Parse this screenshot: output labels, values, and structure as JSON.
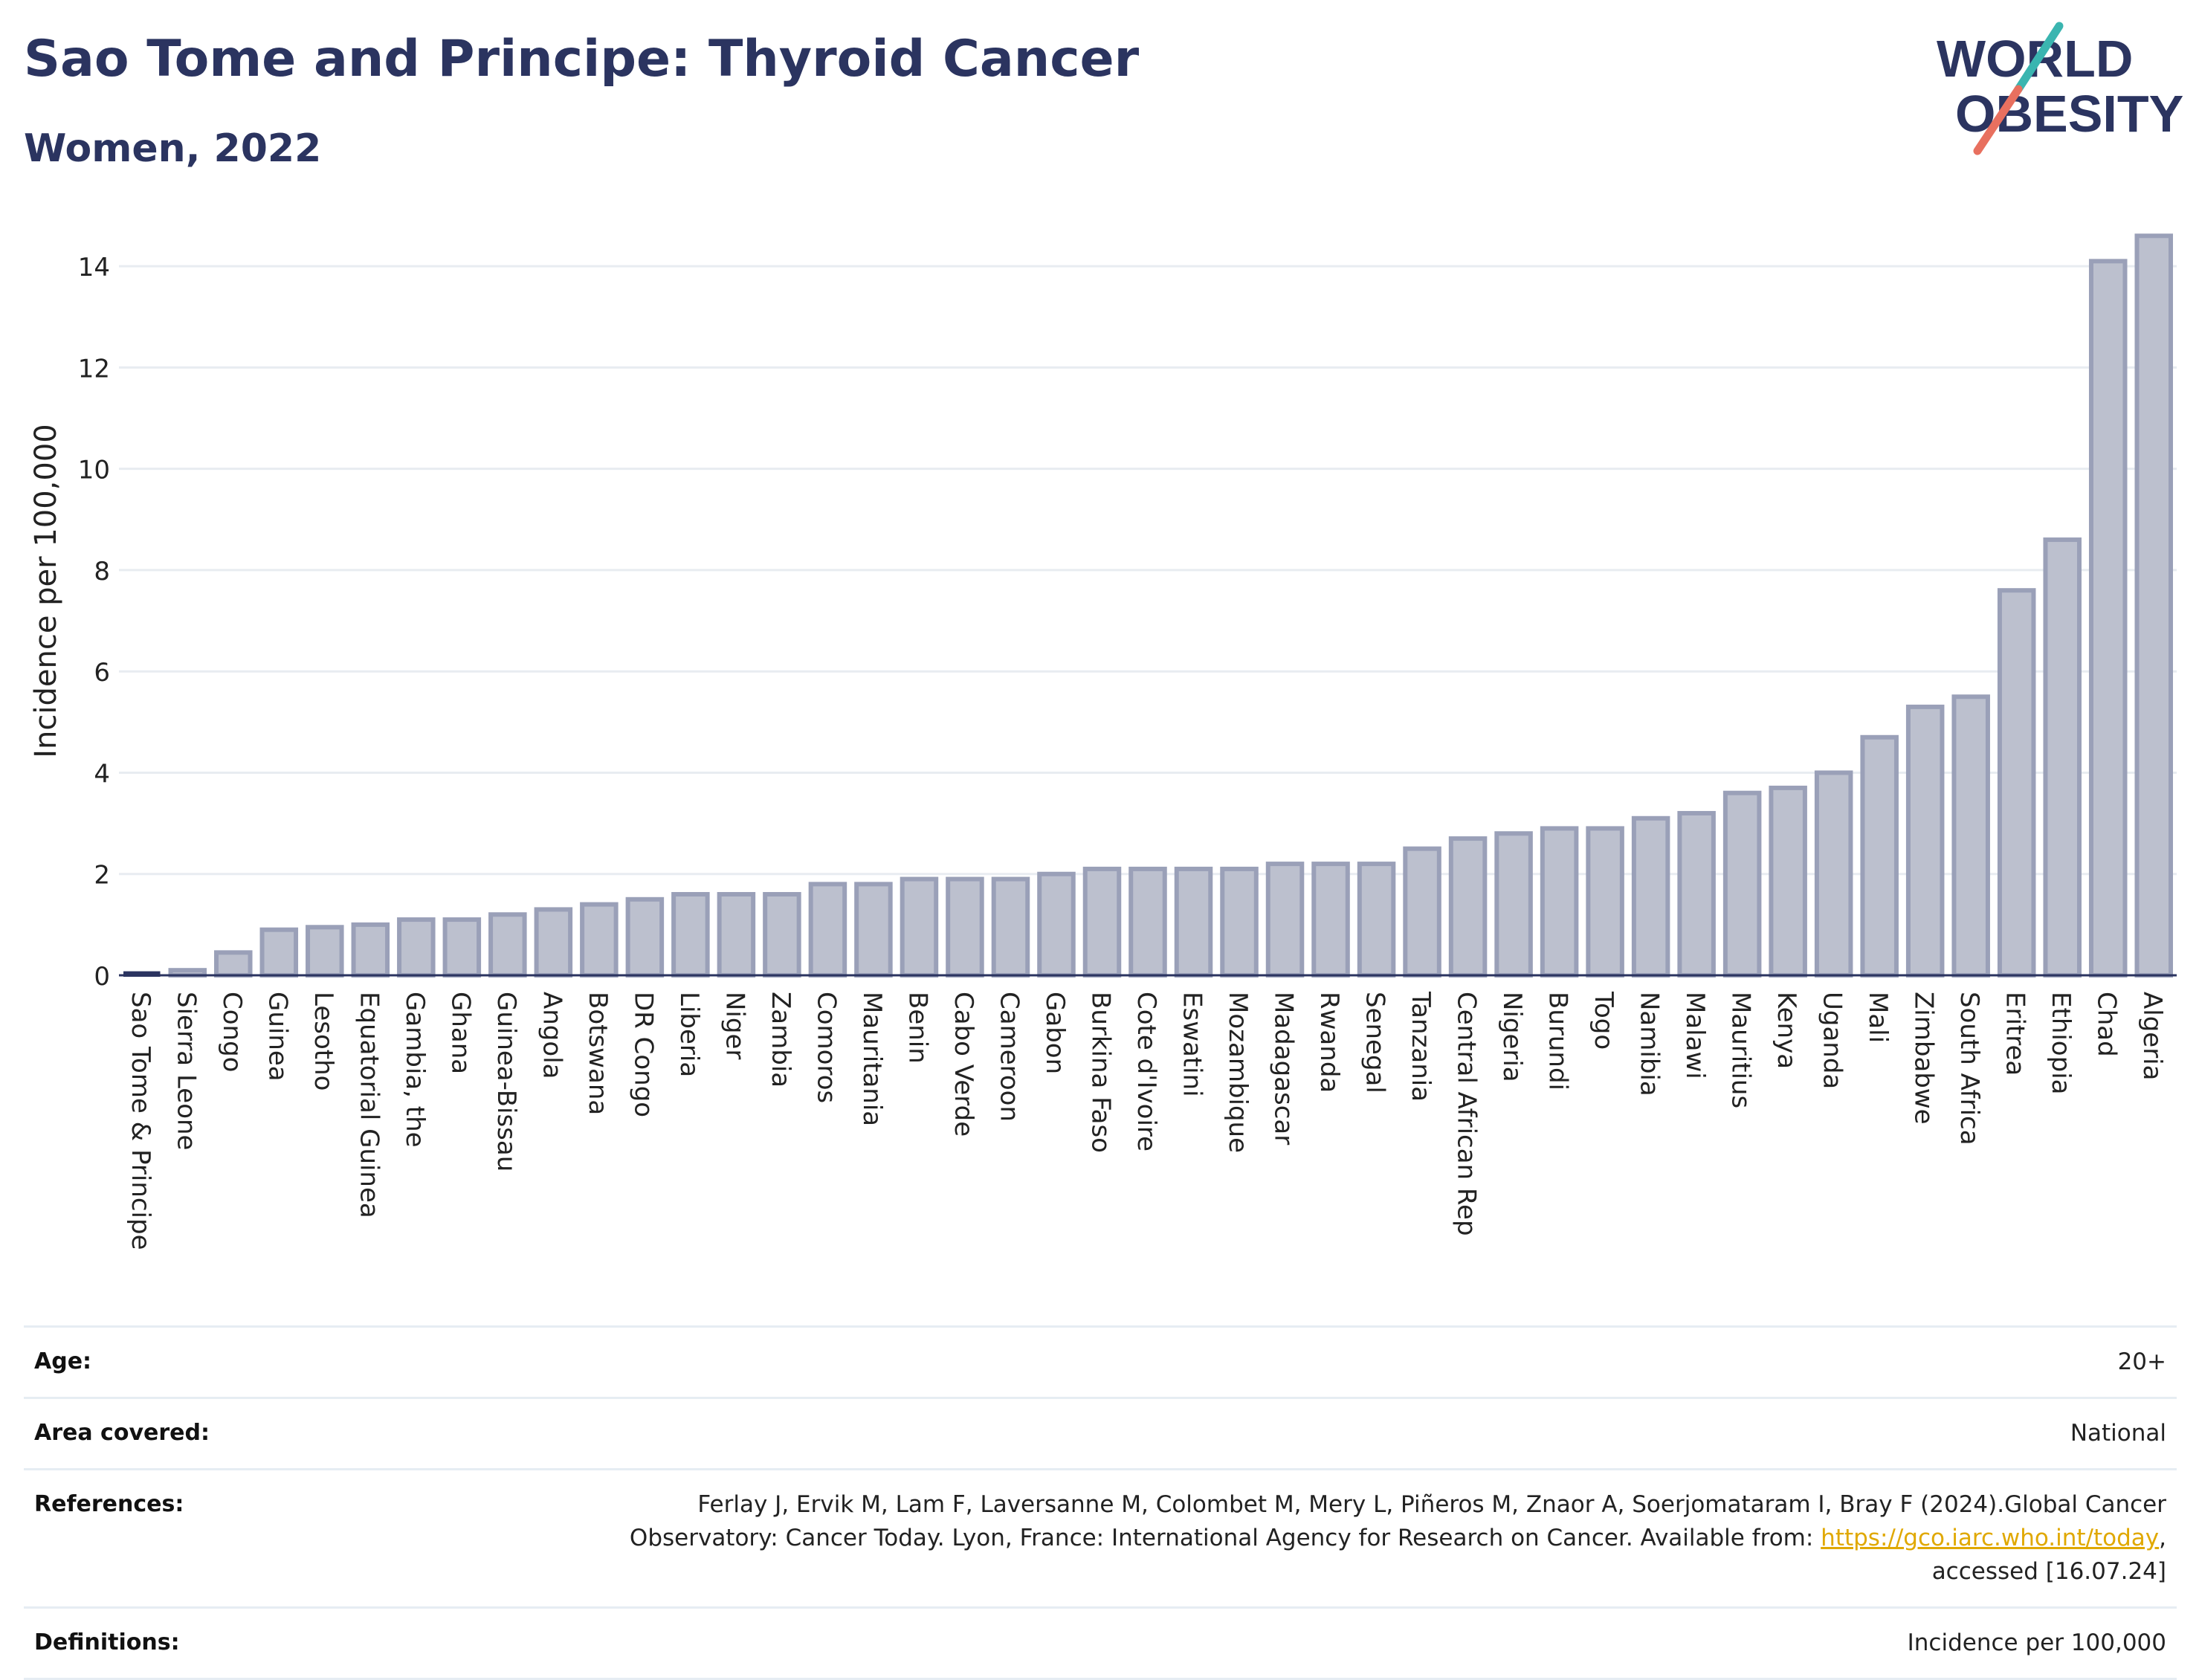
{
  "header": {
    "title": "Sao Tome and Principe: Thyroid Cancer",
    "subtitle": "Women, 2022"
  },
  "logo": {
    "line1": "WORLD",
    "line2": "OBESITY",
    "colors": {
      "text": "#2b3460",
      "slash_top": "#3ab5b0",
      "slash_bottom": "#e8705f"
    }
  },
  "colors": {
    "bar_fill": "#bcc0ce",
    "bar_stroke": "#9aa0b8",
    "highlight": "#2b3460",
    "grid": "#e8ecf1",
    "axis_text": "#222222"
  },
  "chart_data": {
    "type": "bar",
    "ylabel": "Incidence per 100,000",
    "ylim": [
      0,
      15
    ],
    "yticks": [
      0,
      2,
      4,
      6,
      8,
      10,
      12,
      14
    ],
    "grid": true,
    "highlight_category": "Sao Tome & Principe",
    "categories": [
      "Sao Tome & Principe",
      "Sierra Leone",
      "Congo",
      "Guinea",
      "Lesotho",
      "Equatorial Guinea",
      "Gambia, the",
      "Ghana",
      "Guinea-Bissau",
      "Angola",
      "Botswana",
      "DR Congo",
      "Liberia",
      "Niger",
      "Zambia",
      "Comoros",
      "Mauritania",
      "Benin",
      "Cabo Verde",
      "Cameroon",
      "Gabon",
      "Burkina Faso",
      "Cote d'Ivoire",
      "Eswatini",
      "Mozambique",
      "Madagascar",
      "Rwanda",
      "Senegal",
      "Tanzania",
      "Central African Rep",
      "Nigeria",
      "Burundi",
      "Togo",
      "Namibia",
      "Malawi",
      "Mauritius",
      "Kenya",
      "Uganda",
      "Mali",
      "Zimbabwe",
      "South Africa",
      "Eritrea",
      "Ethiopia",
      "Chad",
      "Algeria"
    ],
    "values": [
      0.05,
      0.1,
      0.45,
      0.9,
      0.95,
      1.0,
      1.1,
      1.1,
      1.2,
      1.3,
      1.4,
      1.5,
      1.6,
      1.6,
      1.6,
      1.8,
      1.8,
      1.9,
      1.9,
      1.9,
      2.0,
      2.1,
      2.1,
      2.1,
      2.1,
      2.2,
      2.2,
      2.2,
      2.5,
      2.7,
      2.8,
      2.9,
      2.9,
      3.1,
      3.2,
      3.6,
      3.7,
      4.0,
      4.7,
      5.3,
      5.5,
      7.6,
      8.6,
      14.1,
      14.6
    ]
  },
  "info": {
    "age": {
      "label": "Age:",
      "value": "20+"
    },
    "area": {
      "label": "Area covered:",
      "value": "National"
    },
    "references": {
      "label": "References:",
      "line1": "Ferlay J, Ervik M, Lam F, Laversanne M, Colombet M, Mery L, Piñeros M, Znaor A, Soerjomataram I, Bray F (2024).Global Cancer",
      "line2_prefix": "Observatory: Cancer Today. Lyon, France: International Agency for Research on Cancer. Available from: ",
      "link": "https://gco.iarc.who.int/today",
      "line2_suffix": ",",
      "line3": "accessed [16.07.24]"
    },
    "definitions": {
      "label": "Definitions:",
      "value": "Incidence per 100,000"
    }
  }
}
